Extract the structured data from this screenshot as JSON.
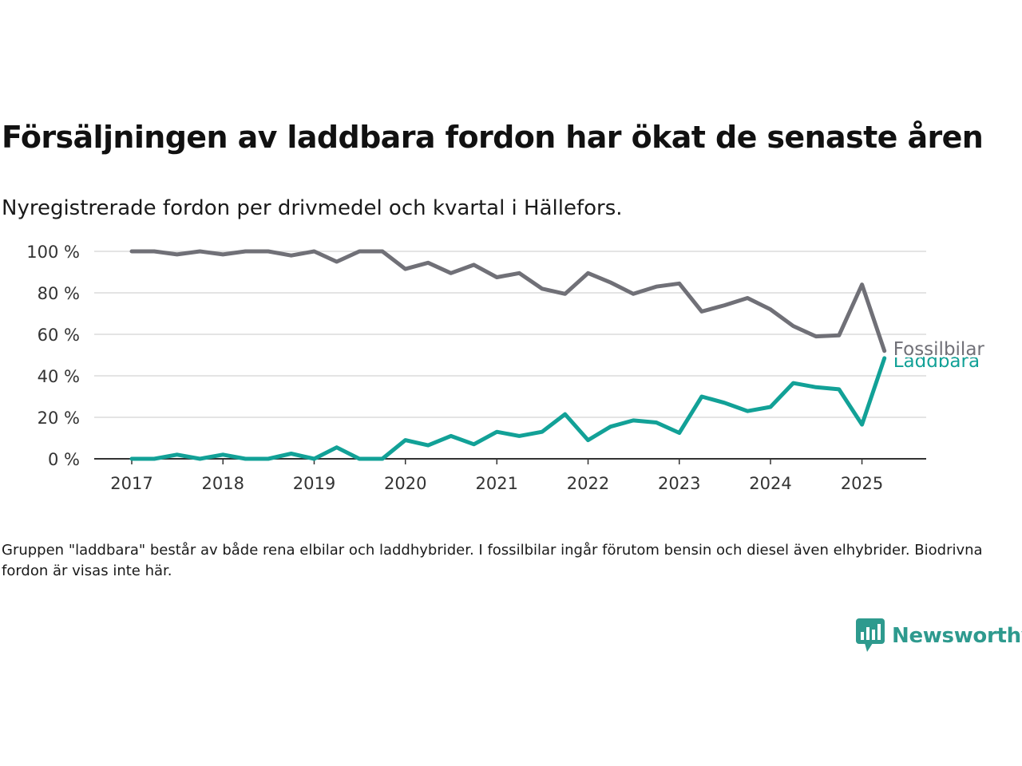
{
  "brand": {
    "name": "Newsworthy",
    "color": "#2e9a8e",
    "icon": "bar-chart-speech-bubble-icon"
  },
  "colors": {
    "Fossilbilar": "#707077",
    "Laddbara": "#12a197",
    "gridline": "#dcdcdc",
    "axis": "#333333"
  },
  "chart_data": {
    "type": "line",
    "title": "Försäljningen av laddbara fordon har ökat de senaste åren",
    "subtitle": "Nyregistrerade fordon per drivmedel och kvartal i Hällefors.",
    "footnote": "Gruppen \"laddbara\" består av både rena elbilar och laddhybrider. I fossilbilar ingår förutom bensin och diesel även elhybrider. Biodrivna fordon är visas inte här.",
    "xlabel": "",
    "ylabel": "",
    "x": [
      "2017-01-01",
      "2017-04-01",
      "2017-07-01",
      "2017-10-01",
      "2018-01-01",
      "2018-04-01",
      "2018-07-01",
      "2018-10-01",
      "2019-01-01",
      "2019-04-01",
      "2019-07-01",
      "2019-10-01",
      "2020-01-01",
      "2020-04-01",
      "2020-07-01",
      "2020-10-01",
      "2021-01-01",
      "2021-04-01",
      "2021-07-01",
      "2021-10-01",
      "2022-01-01",
      "2022-04-01",
      "2022-07-01",
      "2022-10-01",
      "2023-01-01",
      "2023-04-01",
      "2023-07-01",
      "2023-10-01",
      "2024-01-01",
      "2024-04-01",
      "2024-07-01",
      "2024-10-01",
      "2025-01-01",
      "2025-04-01"
    ],
    "x_ticks": [
      "2017",
      "2018",
      "2019",
      "2020",
      "2021",
      "2022",
      "2023",
      "2024",
      "2025"
    ],
    "y_ticks": [
      0,
      20,
      40,
      60,
      80,
      100
    ],
    "y_tick_labels": [
      "0 %",
      "20 %",
      "40 %",
      "60 %",
      "80 %",
      "100 %"
    ],
    "ylim": [
      0,
      100
    ],
    "grid": true,
    "legend": "inline-labels at end of lines",
    "series": [
      {
        "name": "Fossilbilar",
        "values": [
          100,
          100,
          98.5,
          100,
          98.5,
          100,
          100,
          98,
          100,
          95,
          100,
          100,
          91.5,
          94.5,
          89.5,
          93.5,
          87.5,
          89.5,
          82,
          79.5,
          89.5,
          85,
          79.5,
          83,
          84.5,
          71,
          74,
          77.5,
          72,
          64,
          59,
          59.5,
          84,
          52
        ]
      },
      {
        "name": "Laddbara",
        "values": [
          0,
          0,
          2,
          0,
          2,
          0,
          0,
          2.5,
          0,
          5.5,
          0,
          0,
          9,
          6.5,
          11,
          7,
          13,
          11,
          13,
          21.5,
          9,
          15.5,
          18.5,
          17.5,
          12.5,
          30,
          27,
          23,
          25,
          36.5,
          34.5,
          33.5,
          16.5,
          48.5
        ]
      }
    ]
  }
}
